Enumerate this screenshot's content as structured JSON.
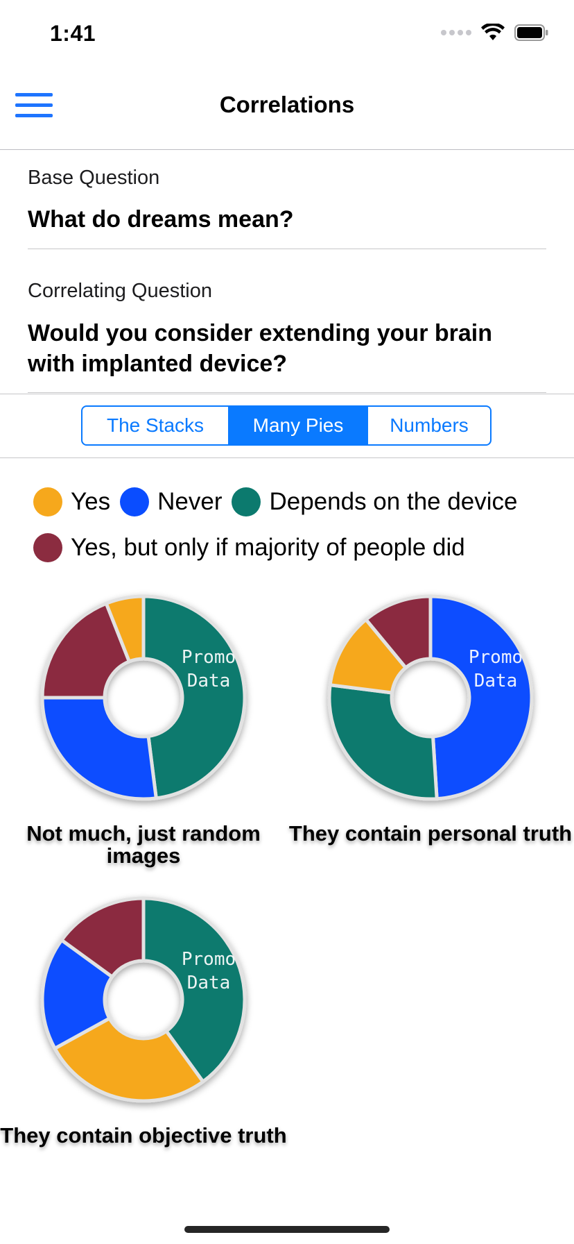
{
  "status_bar": {
    "time": "1:41"
  },
  "nav": {
    "title": "Correlations"
  },
  "base_question": {
    "label": "Base Question",
    "text": "What do dreams mean?"
  },
  "correlating_question": {
    "label": "Correlating Question",
    "text": "Would you consider extending your brain with implanted device?"
  },
  "tabs": [
    {
      "label": "The Stacks",
      "selected": false
    },
    {
      "label": "Many Pies",
      "selected": true
    },
    {
      "label": "Numbers",
      "selected": false
    }
  ],
  "legend": [
    {
      "label": "Yes",
      "color": "#F6A81C"
    },
    {
      "label": "Never",
      "color": "#0A4DFF"
    },
    {
      "label": "Depends on the device",
      "color": "#0C7A6E"
    },
    {
      "label": "Yes, but only if majority of people did",
      "color": "#8B2C40"
    }
  ],
  "chart_data": [
    {
      "type": "pie",
      "title": "Not much, just random images",
      "center_text": [
        "Promo",
        "Data"
      ],
      "slices": [
        {
          "name": "Depends on the device",
          "value": 48,
          "color": "#0C7A6E"
        },
        {
          "name": "Never",
          "value": 27,
          "color": "#0A4DFF"
        },
        {
          "name": "Yes, but only if majority of people did",
          "value": 19,
          "color": "#8B2C40"
        },
        {
          "name": "Yes",
          "value": 6,
          "color": "#F6A81C"
        }
      ]
    },
    {
      "type": "pie",
      "title": "They contain personal truth",
      "center_text": [
        "Promo",
        "Data"
      ],
      "slices": [
        {
          "name": "Never",
          "value": 49,
          "color": "#0A4DFF"
        },
        {
          "name": "Depends on the device",
          "value": 28,
          "color": "#0C7A6E"
        },
        {
          "name": "Yes",
          "value": 12,
          "color": "#F6A81C"
        },
        {
          "name": "Yes, but only if majority of people did",
          "value": 11,
          "color": "#8B2C40"
        }
      ]
    },
    {
      "type": "pie",
      "title": "They contain objective truth",
      "center_text": [
        "Promo",
        "Data"
      ],
      "slices": [
        {
          "name": "Depends on the device",
          "value": 40,
          "color": "#0C7A6E"
        },
        {
          "name": "Yes",
          "value": 27,
          "color": "#F6A81C"
        },
        {
          "name": "Never",
          "value": 18,
          "color": "#0A4DFF"
        },
        {
          "name": "Yes, but only if majority of people did",
          "value": 15,
          "color": "#8B2C40"
        }
      ]
    }
  ]
}
